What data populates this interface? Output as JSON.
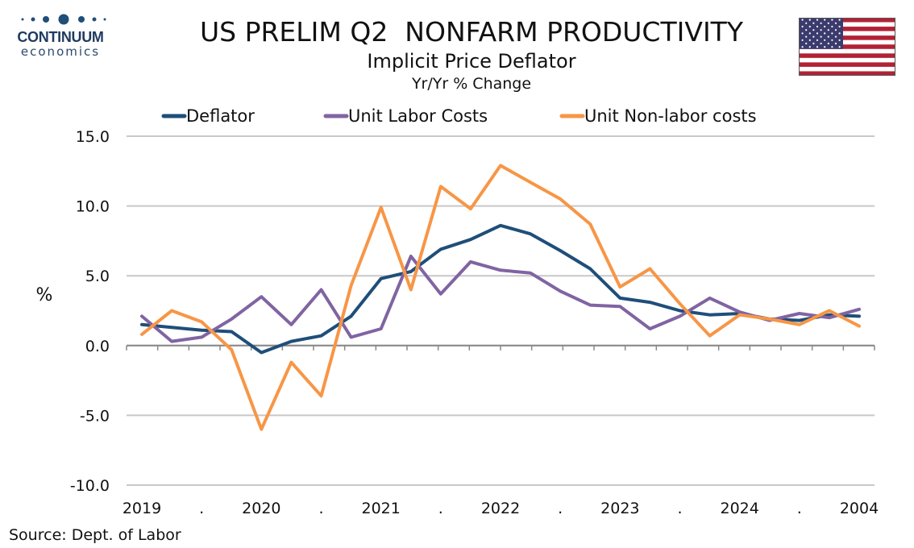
{
  "logo": {
    "name": "CONTINUUM",
    "sub": "economics"
  },
  "header": {
    "title": "US PRELIM Q2  NONFARM PRODUCTIVITY",
    "subtitle": "Implicit Price Deflator",
    "subsubtitle": "Yr/Yr % Change"
  },
  "source": "Source: Dept. of Labor",
  "colors": {
    "deflator": "#1f4e79",
    "unit_labor": "#8064a2",
    "unit_nonlabor": "#f79646",
    "grid": "#c8c8c8",
    "flag_red": "#b22234",
    "flag_blue": "#3c3b6e"
  },
  "chart_data": {
    "type": "line",
    "title": "US PRELIM Q2  NONFARM PRODUCTIVITY",
    "ylabel": "%",
    "ylim": [
      -10,
      15
    ],
    "yticks": [
      "15.0",
      "10.0",
      "5.0",
      "0.0",
      "-5.0",
      "-10.0"
    ],
    "yticks_values": [
      15,
      10,
      5,
      0,
      -5,
      -10
    ],
    "xtick_labels": [
      "2019",
      ".",
      "2020",
      ".",
      "2021",
      ".",
      "2022",
      ".",
      "2023",
      ".",
      "2024",
      ".",
      "2004"
    ],
    "legend_position": "top",
    "grid": true,
    "series": [
      {
        "name": "Deflator",
        "color": "#1f4e79",
        "values": [
          1.5,
          1.3,
          1.1,
          1.0,
          -0.5,
          0.3,
          0.7,
          2.1,
          4.8,
          5.3,
          6.9,
          7.6,
          8.6,
          8.0,
          6.8,
          5.5,
          3.4,
          3.1,
          2.5,
          2.2,
          2.3,
          1.9,
          1.8,
          2.2,
          2.1
        ]
      },
      {
        "name": "Unit Labor Costs",
        "color": "#8064a2",
        "values": [
          2.1,
          0.3,
          0.6,
          1.9,
          3.5,
          1.5,
          4.0,
          0.6,
          1.2,
          6.4,
          3.7,
          6.0,
          5.4,
          5.2,
          3.9,
          2.9,
          2.8,
          1.2,
          2.1,
          3.4,
          2.4,
          1.8,
          2.3,
          2.0,
          2.6
        ]
      },
      {
        "name": "Unit Non-labor costs",
        "color": "#f79646",
        "values": [
          0.8,
          2.5,
          1.7,
          -0.3,
          -6.0,
          -1.2,
          -3.6,
          4.3,
          9.9,
          4.0,
          11.4,
          9.8,
          12.9,
          11.7,
          10.5,
          8.7,
          4.2,
          5.5,
          3.0,
          0.7,
          2.2,
          1.9,
          1.5,
          2.5,
          1.4
        ]
      }
    ]
  }
}
